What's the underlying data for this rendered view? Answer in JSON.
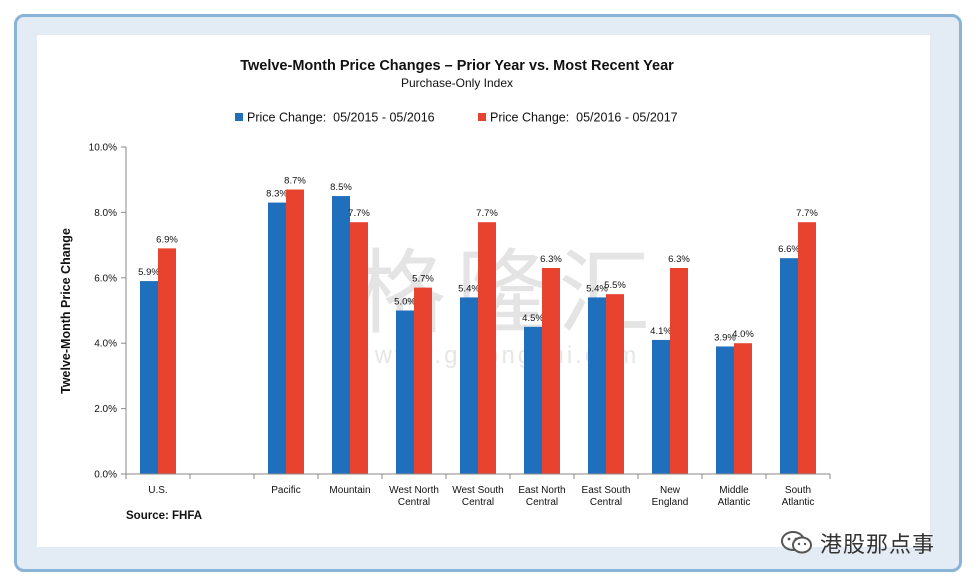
{
  "chart_data": {
    "type": "bar",
    "title": "Twelve-Month Price Changes – Prior Year vs. Most Recent Year",
    "subtitle": "Purchase-Only Index",
    "ylabel": "Twelve-Month Price Change",
    "xlabel": "",
    "ylim": [
      0,
      10
    ],
    "yticks": [
      "0.0%",
      "2.0%",
      "4.0%",
      "6.0%",
      "8.0%",
      "10.0%"
    ],
    "grid": false,
    "legend_position": "top-center",
    "categories": [
      [
        "U.S."
      ],
      [],
      [
        "Pacific"
      ],
      [
        "Mountain"
      ],
      [
        "West North",
        "Central"
      ],
      [
        "West South",
        "Central"
      ],
      [
        "East North",
        "Central"
      ],
      [
        "East South",
        "Central"
      ],
      [
        "New",
        "England"
      ],
      [
        "Middle",
        "Atlantic"
      ],
      [
        "South",
        "Atlantic"
      ]
    ],
    "series": [
      {
        "name": "Price Change:  05/2015 - 05/2016",
        "color": "#1f6fbd",
        "values": [
          5.9,
          null,
          8.3,
          8.5,
          5.0,
          5.4,
          4.5,
          5.4,
          4.1,
          3.9,
          6.6
        ],
        "labels": [
          "5.9%",
          "",
          "8.3%",
          "8.5%",
          "5.0%",
          "5.4%",
          "4.5%",
          "5.4%",
          "4.1%",
          "3.9%",
          "6.6%"
        ]
      },
      {
        "name": "Price Change:  05/2016 - 05/2017",
        "color": "#e8432e",
        "values": [
          6.9,
          null,
          8.7,
          7.7,
          5.7,
          7.7,
          6.3,
          5.5,
          6.3,
          4.0,
          7.7
        ],
        "labels": [
          "6.9%",
          "",
          "8.7%",
          "7.7%",
          "5.7%",
          "7.7%",
          "6.3%",
          "5.5%",
          "6.3%",
          "4.0%",
          "7.7%"
        ]
      }
    ],
    "source": "Source: FHFA"
  },
  "watermark": {
    "chars": "格隆汇",
    "url": "www.gelonghui.com"
  },
  "wechat": {
    "icon": "wechat-icon",
    "label": "港股那点事"
  }
}
